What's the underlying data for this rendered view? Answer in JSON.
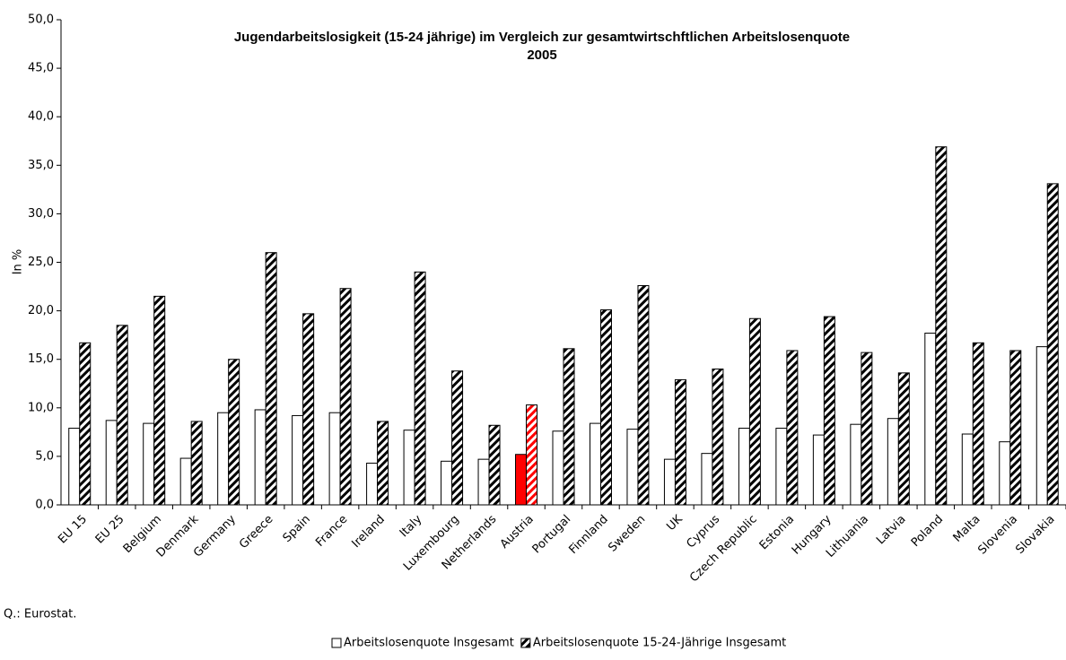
{
  "chart_data": {
    "type": "bar",
    "title": "Jugendarbeitslosigkeit (15-24 jährige)  im Vergleich zur gesamtwirtschftlichen Arbeitslosenquote",
    "subtitle": "2005",
    "y_label": "In %",
    "source": "Q.: Eurostat.",
    "categories": [
      "EU 15",
      "EU 25",
      "Belgium",
      "Denmark",
      "Germany",
      "Greece",
      "Spain",
      "France",
      "Ireland",
      "Italy",
      "Luxembourg",
      "Netherlands",
      "Austria",
      "Portugal",
      "Finnland",
      "Sweden",
      "UK",
      "Cyprus",
      "Czech Republic",
      "Estonia",
      "Hungary",
      "Lithuania",
      "Latvia",
      "Poland",
      "Malta",
      "Slovenia",
      "Slovakia"
    ],
    "series": [
      {
        "name": "Arbeitslosenquote Insgesamt",
        "color": "#ffffff",
        "pattern": "solid",
        "values": [
          7.9,
          8.7,
          8.4,
          4.8,
          9.5,
          9.8,
          9.2,
          9.5,
          4.3,
          7.7,
          4.5,
          4.7,
          5.2,
          7.6,
          8.4,
          7.8,
          4.7,
          5.3,
          7.9,
          7.9,
          7.2,
          8.3,
          8.9,
          17.7,
          7.3,
          6.5,
          16.3
        ]
      },
      {
        "name": "Arbeitslosenquote 15-24-Jährige Insgesamt",
        "color": "#000000",
        "pattern": "hatch",
        "values": [
          16.7,
          18.5,
          21.5,
          8.6,
          15.0,
          26.0,
          19.7,
          22.3,
          8.6,
          24.0,
          13.8,
          8.2,
          10.3,
          16.1,
          20.1,
          22.6,
          12.9,
          14.0,
          19.2,
          15.9,
          19.4,
          15.7,
          13.6,
          36.9,
          16.7,
          15.9,
          33.1
        ]
      }
    ],
    "highlight": {
      "category": "Austria",
      "color": "#ff0000"
    },
    "ylim": [
      0,
      50
    ],
    "yticks": [
      {
        "value": 0,
        "label": "0,0"
      },
      {
        "value": 5,
        "label": "5,0"
      },
      {
        "value": 10,
        "label": "10,0"
      },
      {
        "value": 15,
        "label": "15,0"
      },
      {
        "value": 20,
        "label": "20,0"
      },
      {
        "value": 25,
        "label": "25,0"
      },
      {
        "value": 30,
        "label": "30,0"
      },
      {
        "value": 35,
        "label": "35,0"
      },
      {
        "value": 40,
        "label": "40,0"
      },
      {
        "value": 45,
        "label": "45,0"
      },
      {
        "value": 50,
        "label": "50,0"
      }
    ],
    "grid": false,
    "legend": "bottom"
  }
}
